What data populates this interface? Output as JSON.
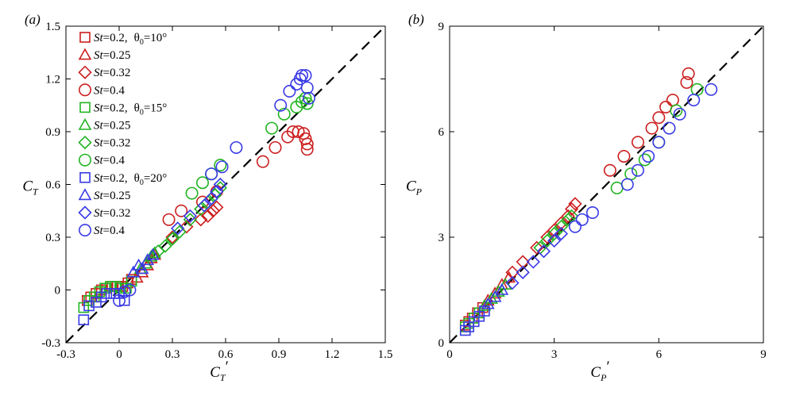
{
  "chart_data": [
    {
      "type": "scatter",
      "panel_label": "(a)",
      "xlabel": {
        "base": "C",
        "sub": "T",
        "prime": "′"
      },
      "ylabel": {
        "base": "C",
        "sub": "T",
        "prime": ""
      },
      "xlim": [
        -0.3,
        1.5
      ],
      "ylim": [
        -0.3,
        1.5
      ],
      "xticks": [
        -0.3,
        0,
        0.3,
        0.6,
        0.9,
        1.2,
        1.5
      ],
      "yticks": [
        -0.3,
        0,
        0.3,
        0.6,
        0.9,
        1.2,
        1.5
      ],
      "xtick_labels": [
        "-0.3",
        "0",
        "0.3",
        "0.6",
        "0.9",
        "1.2",
        "1.5"
      ],
      "ytick_labels": [
        "-0.3",
        "0",
        "0.3",
        "0.6",
        "0.9",
        "1.2",
        "1.5"
      ],
      "reference_line": "y = x (dashed)",
      "legend": [
        {
          "st": "St",
          "value": "=0.2,",
          "theta": "θ",
          "theta_sub": "0",
          "theta_value": "=10°",
          "marker": "square",
          "color": "#cc1f1f"
        },
        {
          "st": "St",
          "value": "=0.25",
          "marker": "triangle",
          "color": "#cc1f1f"
        },
        {
          "st": "St",
          "value": "=0.32",
          "marker": "diamond",
          "color": "#cc1f1f"
        },
        {
          "st": "St",
          "value": "=0.4",
          "marker": "circle",
          "color": "#cc1f1f"
        },
        {
          "st": "St",
          "value": "=0.2,",
          "theta": "θ",
          "theta_sub": "0",
          "theta_value": "=15°",
          "marker": "square",
          "color": "#22b422"
        },
        {
          "st": "St",
          "value": "=0.25",
          "marker": "triangle",
          "color": "#22b422"
        },
        {
          "st": "St",
          "value": "=0.32",
          "marker": "diamond",
          "color": "#22b422"
        },
        {
          "st": "St",
          "value": "=0.4",
          "marker": "circle",
          "color": "#22b422"
        },
        {
          "st": "St",
          "value": "=0.2,",
          "theta": "θ",
          "theta_sub": "0",
          "theta_value": "=20°",
          "marker": "square",
          "color": "#3a3ae6"
        },
        {
          "st": "St",
          "value": "=0.25",
          "marker": "triangle",
          "color": "#3a3ae6"
        },
        {
          "st": "St",
          "value": "=0.32",
          "marker": "diamond",
          "color": "#3a3ae6"
        },
        {
          "st": "St",
          "value": "=0.4",
          "marker": "circle",
          "color": "#3a3ae6"
        }
      ],
      "series": [
        {
          "name": "St=0.2, θ0=10°",
          "marker": "square",
          "color": "#cc1f1f",
          "x": [
            -0.18,
            -0.16,
            -0.13,
            -0.1,
            -0.07,
            -0.04,
            -0.01,
            0.02,
            0.05,
            0.07
          ],
          "y": [
            -0.06,
            -0.04,
            -0.02,
            0.0,
            0.01,
            0.02,
            0.02,
            0.02,
            0.04,
            0.06
          ]
        },
        {
          "name": "St=0.25, θ0=10°",
          "marker": "triangle",
          "color": "#cc1f1f",
          "x": [
            0.1,
            0.13,
            0.16,
            0.18,
            0.2
          ],
          "y": [
            0.07,
            0.1,
            0.14,
            0.18,
            0.2
          ]
        },
        {
          "name": "St=0.32, θ0=10°",
          "marker": "diamond",
          "color": "#cc1f1f",
          "x": [
            0.3,
            0.38,
            0.46,
            0.5,
            0.53,
            0.55
          ],
          "y": [
            0.3,
            0.36,
            0.4,
            0.42,
            0.45,
            0.47
          ]
        },
        {
          "name": "St=0.4, θ0=10°",
          "marker": "circle",
          "color": "#cc1f1f",
          "x": [
            0.28,
            0.35,
            0.47,
            0.55,
            0.81,
            0.88,
            0.95,
            0.98,
            1.01,
            1.04,
            1.05,
            1.06,
            1.06
          ],
          "y": [
            0.4,
            0.45,
            0.5,
            0.56,
            0.73,
            0.81,
            0.87,
            0.9,
            0.9,
            0.89,
            0.86,
            0.83,
            0.8
          ]
        },
        {
          "name": "St=0.2, θ0=15°",
          "marker": "square",
          "color": "#22b422",
          "x": [
            -0.2,
            -0.17,
            -0.14,
            -0.11,
            -0.08,
            -0.05,
            -0.02,
            0.01,
            0.04,
            0.07
          ],
          "y": [
            -0.1,
            -0.06,
            -0.04,
            -0.01,
            0.01,
            0.02,
            0.02,
            0.01,
            0.01,
            0.05
          ]
        },
        {
          "name": "St=0.25, θ0=15°",
          "marker": "triangle",
          "color": "#22b422",
          "x": [
            0.12,
            0.15,
            0.18,
            0.2
          ],
          "y": [
            0.12,
            0.15,
            0.19,
            0.21
          ]
        },
        {
          "name": "St=0.32, θ0=15°",
          "marker": "diamond",
          "color": "#22b422",
          "x": [
            0.22,
            0.26,
            0.3,
            0.34,
            0.4,
            0.46,
            0.5,
            0.54,
            0.57
          ],
          "y": [
            0.22,
            0.25,
            0.29,
            0.33,
            0.4,
            0.46,
            0.5,
            0.54,
            0.58
          ]
        },
        {
          "name": "St=0.4, θ0=15°",
          "marker": "circle",
          "color": "#22b422",
          "x": [
            0.41,
            0.47,
            0.52,
            0.57,
            0.86,
            0.93,
            1.0,
            1.03,
            1.05,
            1.06
          ],
          "y": [
            0.55,
            0.61,
            0.66,
            0.71,
            0.92,
            1.0,
            1.04,
            1.07,
            1.09,
            1.06
          ]
        },
        {
          "name": "St=0.2, θ0=20°",
          "marker": "square",
          "color": "#3a3ae6",
          "x": [
            -0.2,
            -0.17,
            -0.13,
            -0.1,
            -0.07,
            -0.03,
            0.0,
            0.03
          ],
          "y": [
            -0.17,
            -0.09,
            -0.07,
            -0.04,
            -0.02,
            -0.02,
            -0.02,
            -0.06
          ]
        },
        {
          "name": "St=0.25, θ0=20°",
          "marker": "triangle",
          "color": "#3a3ae6",
          "x": [
            0.08,
            0.11,
            0.13,
            0.16,
            0.19
          ],
          "y": [
            0.1,
            0.14,
            0.12,
            0.17,
            0.2
          ]
        },
        {
          "name": "St=0.32, θ0=20°",
          "marker": "diamond",
          "color": "#3a3ae6",
          "x": [
            0.33,
            0.4,
            0.48,
            0.52,
            0.55,
            0.57
          ],
          "y": [
            0.35,
            0.42,
            0.48,
            0.52,
            0.56,
            0.6
          ]
        },
        {
          "name": "St=0.4, θ0=20°",
          "marker": "circle",
          "color": "#3a3ae6",
          "x": [
            0.0,
            0.03,
            0.06,
            0.52,
            0.58,
            0.66,
            0.91,
            0.96,
            1.0,
            1.02,
            1.03,
            1.05,
            1.06,
            1.07
          ],
          "y": [
            -0.06,
            -0.01,
            0.0,
            0.66,
            0.7,
            0.81,
            1.05,
            1.13,
            1.17,
            1.2,
            1.22,
            1.22,
            1.15,
            1.09
          ]
        }
      ]
    },
    {
      "type": "scatter",
      "panel_label": "(b)",
      "xlabel": {
        "base": "C",
        "sub": "P",
        "prime": "′"
      },
      "ylabel": {
        "base": "C",
        "sub": "P",
        "prime": ""
      },
      "xlim": [
        0,
        9
      ],
      "ylim": [
        0,
        9
      ],
      "xticks": [
        0,
        3,
        6,
        9
      ],
      "yticks": [
        0,
        3,
        6,
        9
      ],
      "xtick_labels": [
        "0",
        "3",
        "6",
        "9"
      ],
      "ytick_labels": [
        "0",
        "3",
        "6",
        "9"
      ],
      "reference_line": "y = x (dashed)",
      "series": [
        {
          "name": "St=0.2, θ0=10°",
          "marker": "square",
          "color": "#cc1f1f",
          "x": [
            0.45,
            0.55,
            0.65,
            0.8,
            0.95
          ],
          "y": [
            0.5,
            0.6,
            0.7,
            0.85,
            1.0
          ]
        },
        {
          "name": "St=0.25, θ0=10°",
          "marker": "triangle",
          "color": "#cc1f1f",
          "x": [
            1.1,
            1.3,
            1.5,
            1.7
          ],
          "y": [
            1.2,
            1.4,
            1.65,
            1.85
          ]
        },
        {
          "name": "St=0.32, θ0=10°",
          "marker": "diamond",
          "color": "#cc1f1f",
          "x": [
            1.8,
            2.1,
            2.5,
            2.8,
            3.0,
            3.2,
            3.4,
            3.5,
            3.6
          ],
          "y": [
            2.0,
            2.3,
            2.7,
            3.0,
            3.2,
            3.4,
            3.6,
            3.8,
            3.95
          ]
        },
        {
          "name": "St=0.4, θ0=10°",
          "marker": "circle",
          "color": "#cc1f1f",
          "x": [
            4.6,
            5.0,
            5.4,
            5.8,
            6.0,
            6.2,
            6.4,
            6.8,
            6.85
          ],
          "y": [
            4.9,
            5.3,
            5.7,
            6.1,
            6.4,
            6.7,
            6.9,
            7.4,
            7.65
          ]
        },
        {
          "name": "St=0.2, θ0=15°",
          "marker": "square",
          "color": "#22b422",
          "x": [
            0.45,
            0.55,
            0.7,
            0.85
          ],
          "y": [
            0.45,
            0.55,
            0.7,
            0.85
          ]
        },
        {
          "name": "St=0.25, θ0=15°",
          "marker": "triangle",
          "color": "#22b422",
          "x": [
            1.0,
            1.2,
            1.4,
            1.6
          ],
          "y": [
            1.05,
            1.25,
            1.45,
            1.65
          ]
        },
        {
          "name": "St=0.32, θ0=15°",
          "marker": "diamond",
          "color": "#22b422",
          "x": [
            2.6,
            2.8,
            3.0,
            3.2,
            3.4,
            3.5
          ],
          "y": [
            2.7,
            2.9,
            3.1,
            3.3,
            3.5,
            3.6
          ]
        },
        {
          "name": "St=0.4, θ0=15°",
          "marker": "circle",
          "color": "#22b422",
          "x": [
            4.8,
            5.2,
            5.6,
            6.0,
            6.5,
            7.1
          ],
          "y": [
            4.4,
            4.8,
            5.2,
            5.7,
            6.6,
            7.2
          ]
        },
        {
          "name": "St=0.2, θ0=20°",
          "marker": "square",
          "color": "#3a3ae6",
          "x": [
            0.45,
            0.55,
            0.7,
            0.85,
            1.0
          ],
          "y": [
            0.35,
            0.45,
            0.6,
            0.75,
            0.9
          ]
        },
        {
          "name": "St=0.25, θ0=20°",
          "marker": "triangle",
          "color": "#3a3ae6",
          "x": [
            1.1,
            1.3,
            1.5
          ],
          "y": [
            1.1,
            1.3,
            1.5
          ]
        },
        {
          "name": "St=0.32, θ0=20°",
          "marker": "diamond",
          "color": "#3a3ae6",
          "x": [
            1.8,
            2.1,
            2.4,
            2.7,
            3.0,
            3.2
          ],
          "y": [
            1.7,
            2.0,
            2.3,
            2.6,
            2.9,
            3.1
          ]
        },
        {
          "name": "St=0.4, θ0=20°",
          "marker": "circle",
          "color": "#3a3ae6",
          "x": [
            3.6,
            3.8,
            4.1,
            5.1,
            5.4,
            5.7,
            6.0,
            6.3,
            6.6,
            7.0,
            7.5
          ],
          "y": [
            3.3,
            3.5,
            3.7,
            4.5,
            4.9,
            5.3,
            5.7,
            6.1,
            6.5,
            6.9,
            7.2
          ]
        }
      ]
    }
  ]
}
